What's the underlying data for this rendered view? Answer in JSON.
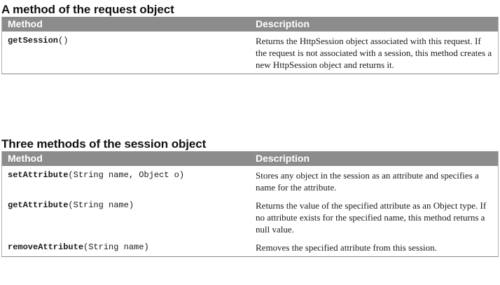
{
  "request_section": {
    "title": "A method of the request object",
    "headers": [
      "Method",
      "Description"
    ],
    "rows": [
      {
        "method_name": "getSession",
        "method_args": "()",
        "description": "Returns the HttpSession object associated with this request. If the request is not associated with a session, this method creates a new HttpSession object and returns it."
      }
    ]
  },
  "session_section": {
    "title": "Three methods of the session object",
    "headers": [
      "Method",
      "Description"
    ],
    "rows": [
      {
        "method_name": "setAttribute",
        "method_args": "(String name, Object o)",
        "description": "Stores any object in the session as an attribute and specifies a name for the attribute."
      },
      {
        "method_name": "getAttribute",
        "method_args": "(String name)",
        "description": "Returns the value of the specified attribute as an Object type. If no attribute exists for the specified name, this method returns a null value."
      },
      {
        "method_name": "removeAttribute",
        "method_args": "(String name)",
        "description": "Removes the specified attribute from this session."
      }
    ]
  }
}
